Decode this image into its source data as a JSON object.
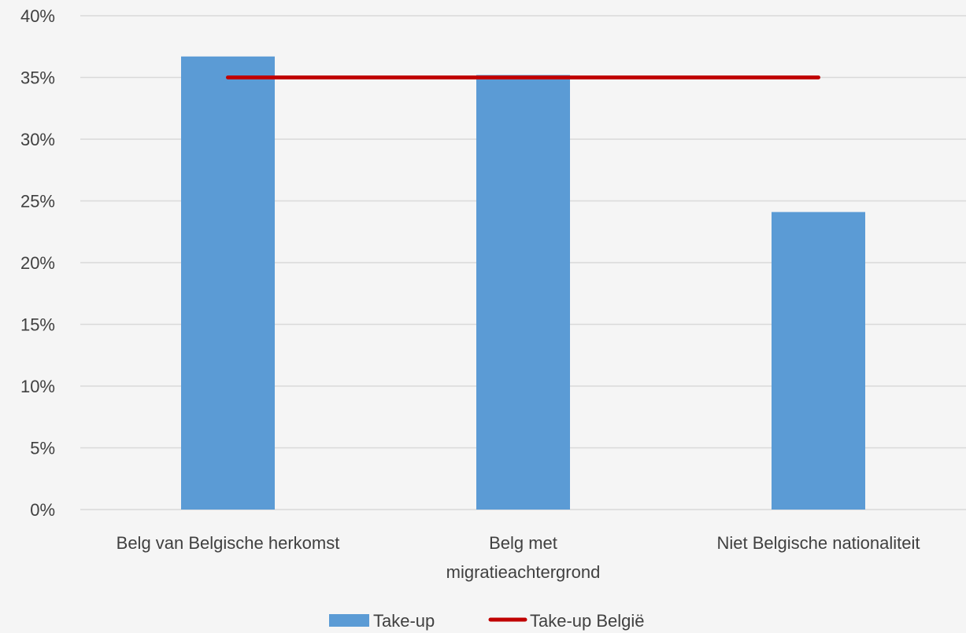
{
  "chart_data": {
    "type": "bar",
    "categories": [
      [
        "Belg van Belgische herkomst"
      ],
      [
        "Belg met",
        "migratieachtergrond"
      ],
      [
        "Niet Belgische nationaliteit"
      ]
    ],
    "series": [
      {
        "name": "Take-up",
        "type": "bar",
        "values": [
          0.367,
          0.352,
          0.241
        ],
        "color": "#5b9bd5"
      },
      {
        "name": "Take-up België",
        "type": "line",
        "values": [
          0.35,
          0.35,
          0.35
        ],
        "color": "#c00000"
      }
    ],
    "y_ticks": [
      "0%",
      "5%",
      "10%",
      "15%",
      "20%",
      "25%",
      "30%",
      "35%",
      "40%"
    ],
    "ylim": [
      0,
      0.4
    ],
    "grid": true,
    "legend_position": "bottom"
  }
}
